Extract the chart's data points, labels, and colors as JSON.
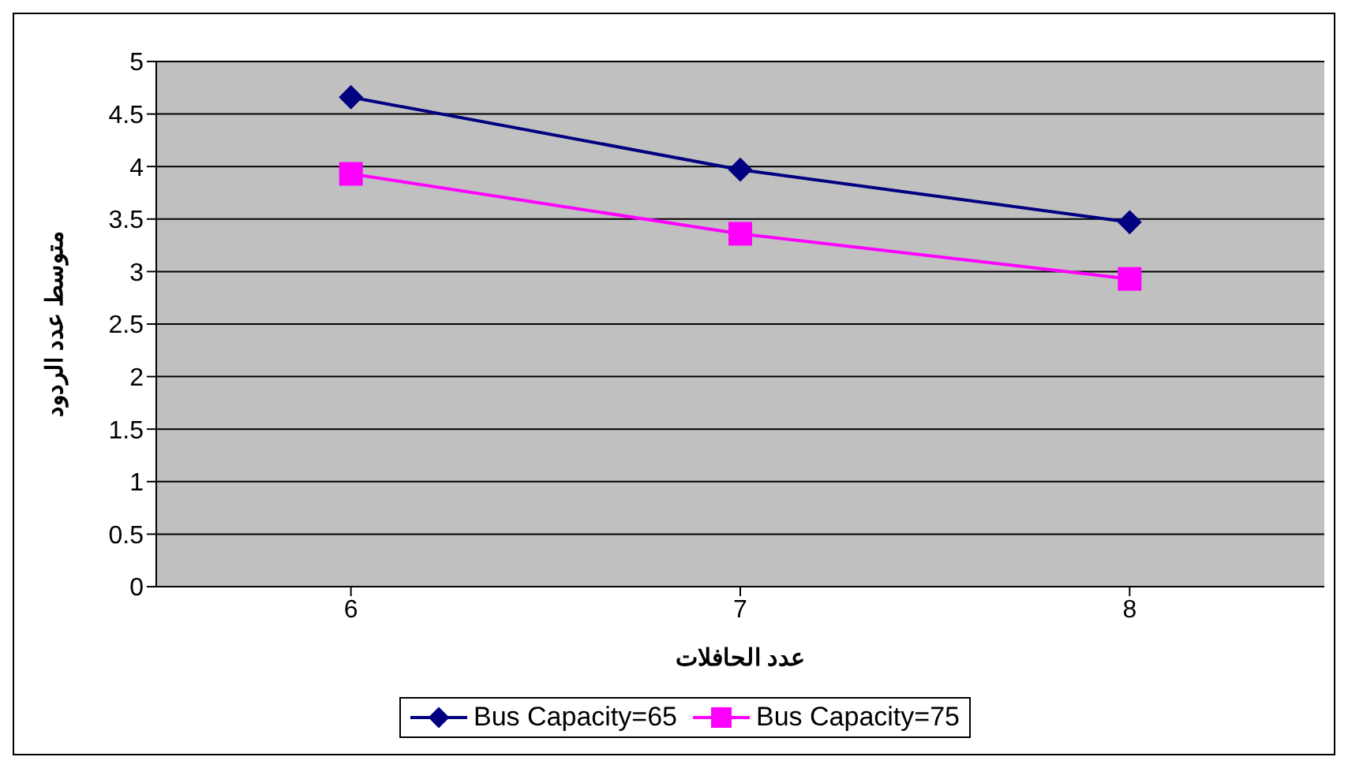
{
  "chart_data": {
    "type": "line",
    "xlabel": "عدد الحافلات",
    "ylabel": "متوسط عدد الردود",
    "categories": [
      "6",
      "7",
      "8"
    ],
    "series": [
      {
        "name": "Bus Capacity=65",
        "color": "#000080",
        "marker": "diamond",
        "values": [
          4.66,
          3.97,
          3.47
        ]
      },
      {
        "name": "Bus Capacity=75",
        "color": "#ff00ff",
        "marker": "square",
        "values": [
          3.93,
          3.36,
          2.93
        ]
      }
    ],
    "ylim": [
      0,
      5
    ],
    "yticks": [
      0,
      0.5,
      1,
      1.5,
      2,
      2.5,
      3,
      3.5,
      4,
      4.5,
      5
    ],
    "grid": "y",
    "legend": "bottom"
  }
}
